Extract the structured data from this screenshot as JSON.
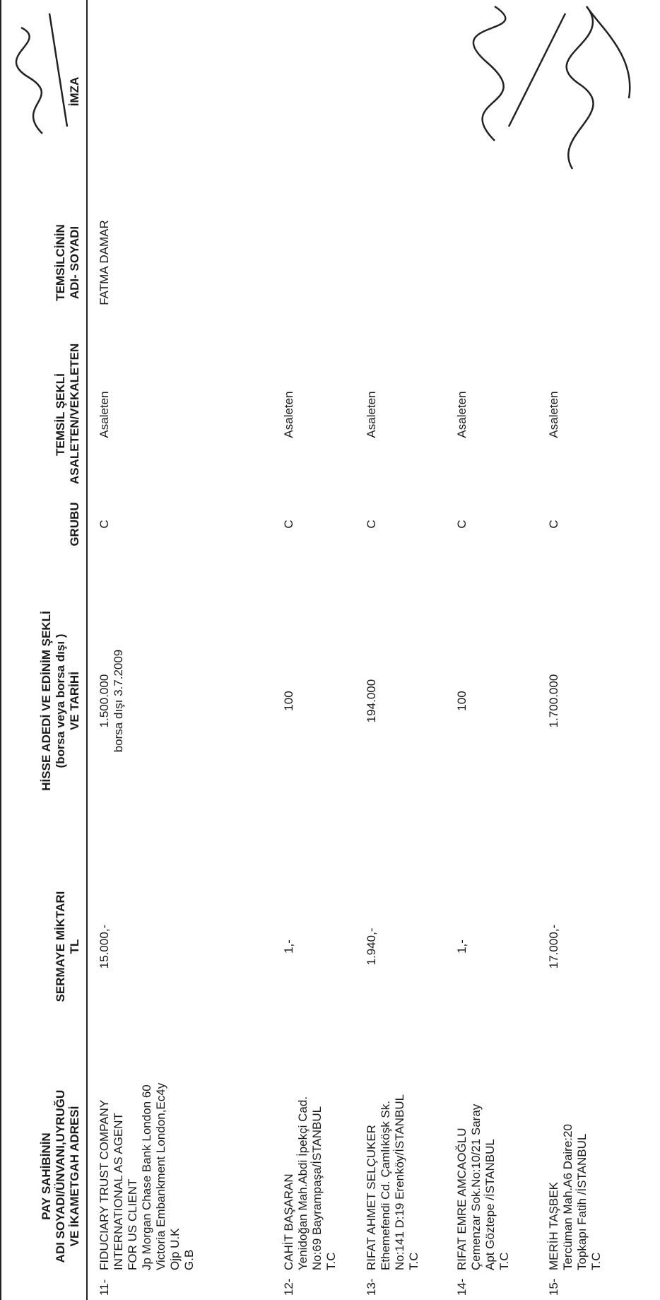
{
  "table": {
    "headers": [
      [
        "PAY SAHİBİNİN",
        "ADI SOYADI/ÜNVANI,UYRUĞU",
        "VE İKAMETGAH ADRESİ"
      ],
      [
        "SERMAYE MİKTARI",
        "TL"
      ],
      [
        "HİSSE ADEDİ VE EDİNİM ŞEKLİ",
        "(borsa veya borsa dışı )",
        "VE TARİHİ"
      ],
      [
        "GRUBU"
      ],
      [
        "TEMSİL ŞEKLİ",
        "ASALETEN/VEKALETEN"
      ],
      [
        "TEMSİLCİNİN",
        "ADI- SOYADI"
      ],
      [
        "İMZA"
      ]
    ],
    "rows": [
      {
        "number": "11-",
        "name": [
          "FIDUCIARY TRUST COMPANY",
          "INTERNATIONAL AS AGENT",
          "FOR US CLIENT",
          "Jp Morgan Chase Bank London 60",
          "Victoria Embankment London,Ec4y",
          "Ojp U.K",
          "G.B"
        ],
        "capital": "15.000,-",
        "shares": [
          "1.500.000",
          "borsa dışı 3.7.2009"
        ],
        "group": "C",
        "representation": "Asaleten",
        "representative": "FATMA DAMAR"
      },
      {
        "number": "12-",
        "name": [
          "CAHİT BAŞARAN",
          "Yenidoğan Mah.Abdi İpekçi Cad.",
          "No:69 Bayrampaşa/İSTANBUL",
          "T.C"
        ],
        "capital": "1,-",
        "shares": [
          "100"
        ],
        "group": "C",
        "representation": "Asaleten"
      },
      {
        "number": "13-",
        "name": [
          "RIFAT AHMET SELÇUKER",
          "Ethemefendi Cd. Çamlıköşk Sk.",
          "No:141 D:19 Erenköy/İSTANBUL",
          "T.C"
        ],
        "capital": "1.940,-",
        "shares": [
          "194.000"
        ],
        "group": "C",
        "representation": "Asaleten"
      },
      {
        "number": "14-",
        "name": [
          "RIFAT EMRE AMCAOĞLU",
          "Çemenzar Sok.No:10/21 Saray",
          "Apt Göztepe /İSTANBUL",
          "T.C"
        ],
        "capital": "1,-",
        "shares": [
          "100"
        ],
        "group": "C",
        "representation": "Asaleten"
      },
      {
        "number": "15-",
        "name": [
          "MERİH TAŞBEK",
          "Tercüman Mah.A6 Daire:20",
          "Topkapı Fatih /İSTANBUL",
          "T.C"
        ],
        "capital": "17.000,-",
        "shares": [
          "1.700.000"
        ],
        "group": "C",
        "representation": "Asaleten"
      }
    ]
  }
}
